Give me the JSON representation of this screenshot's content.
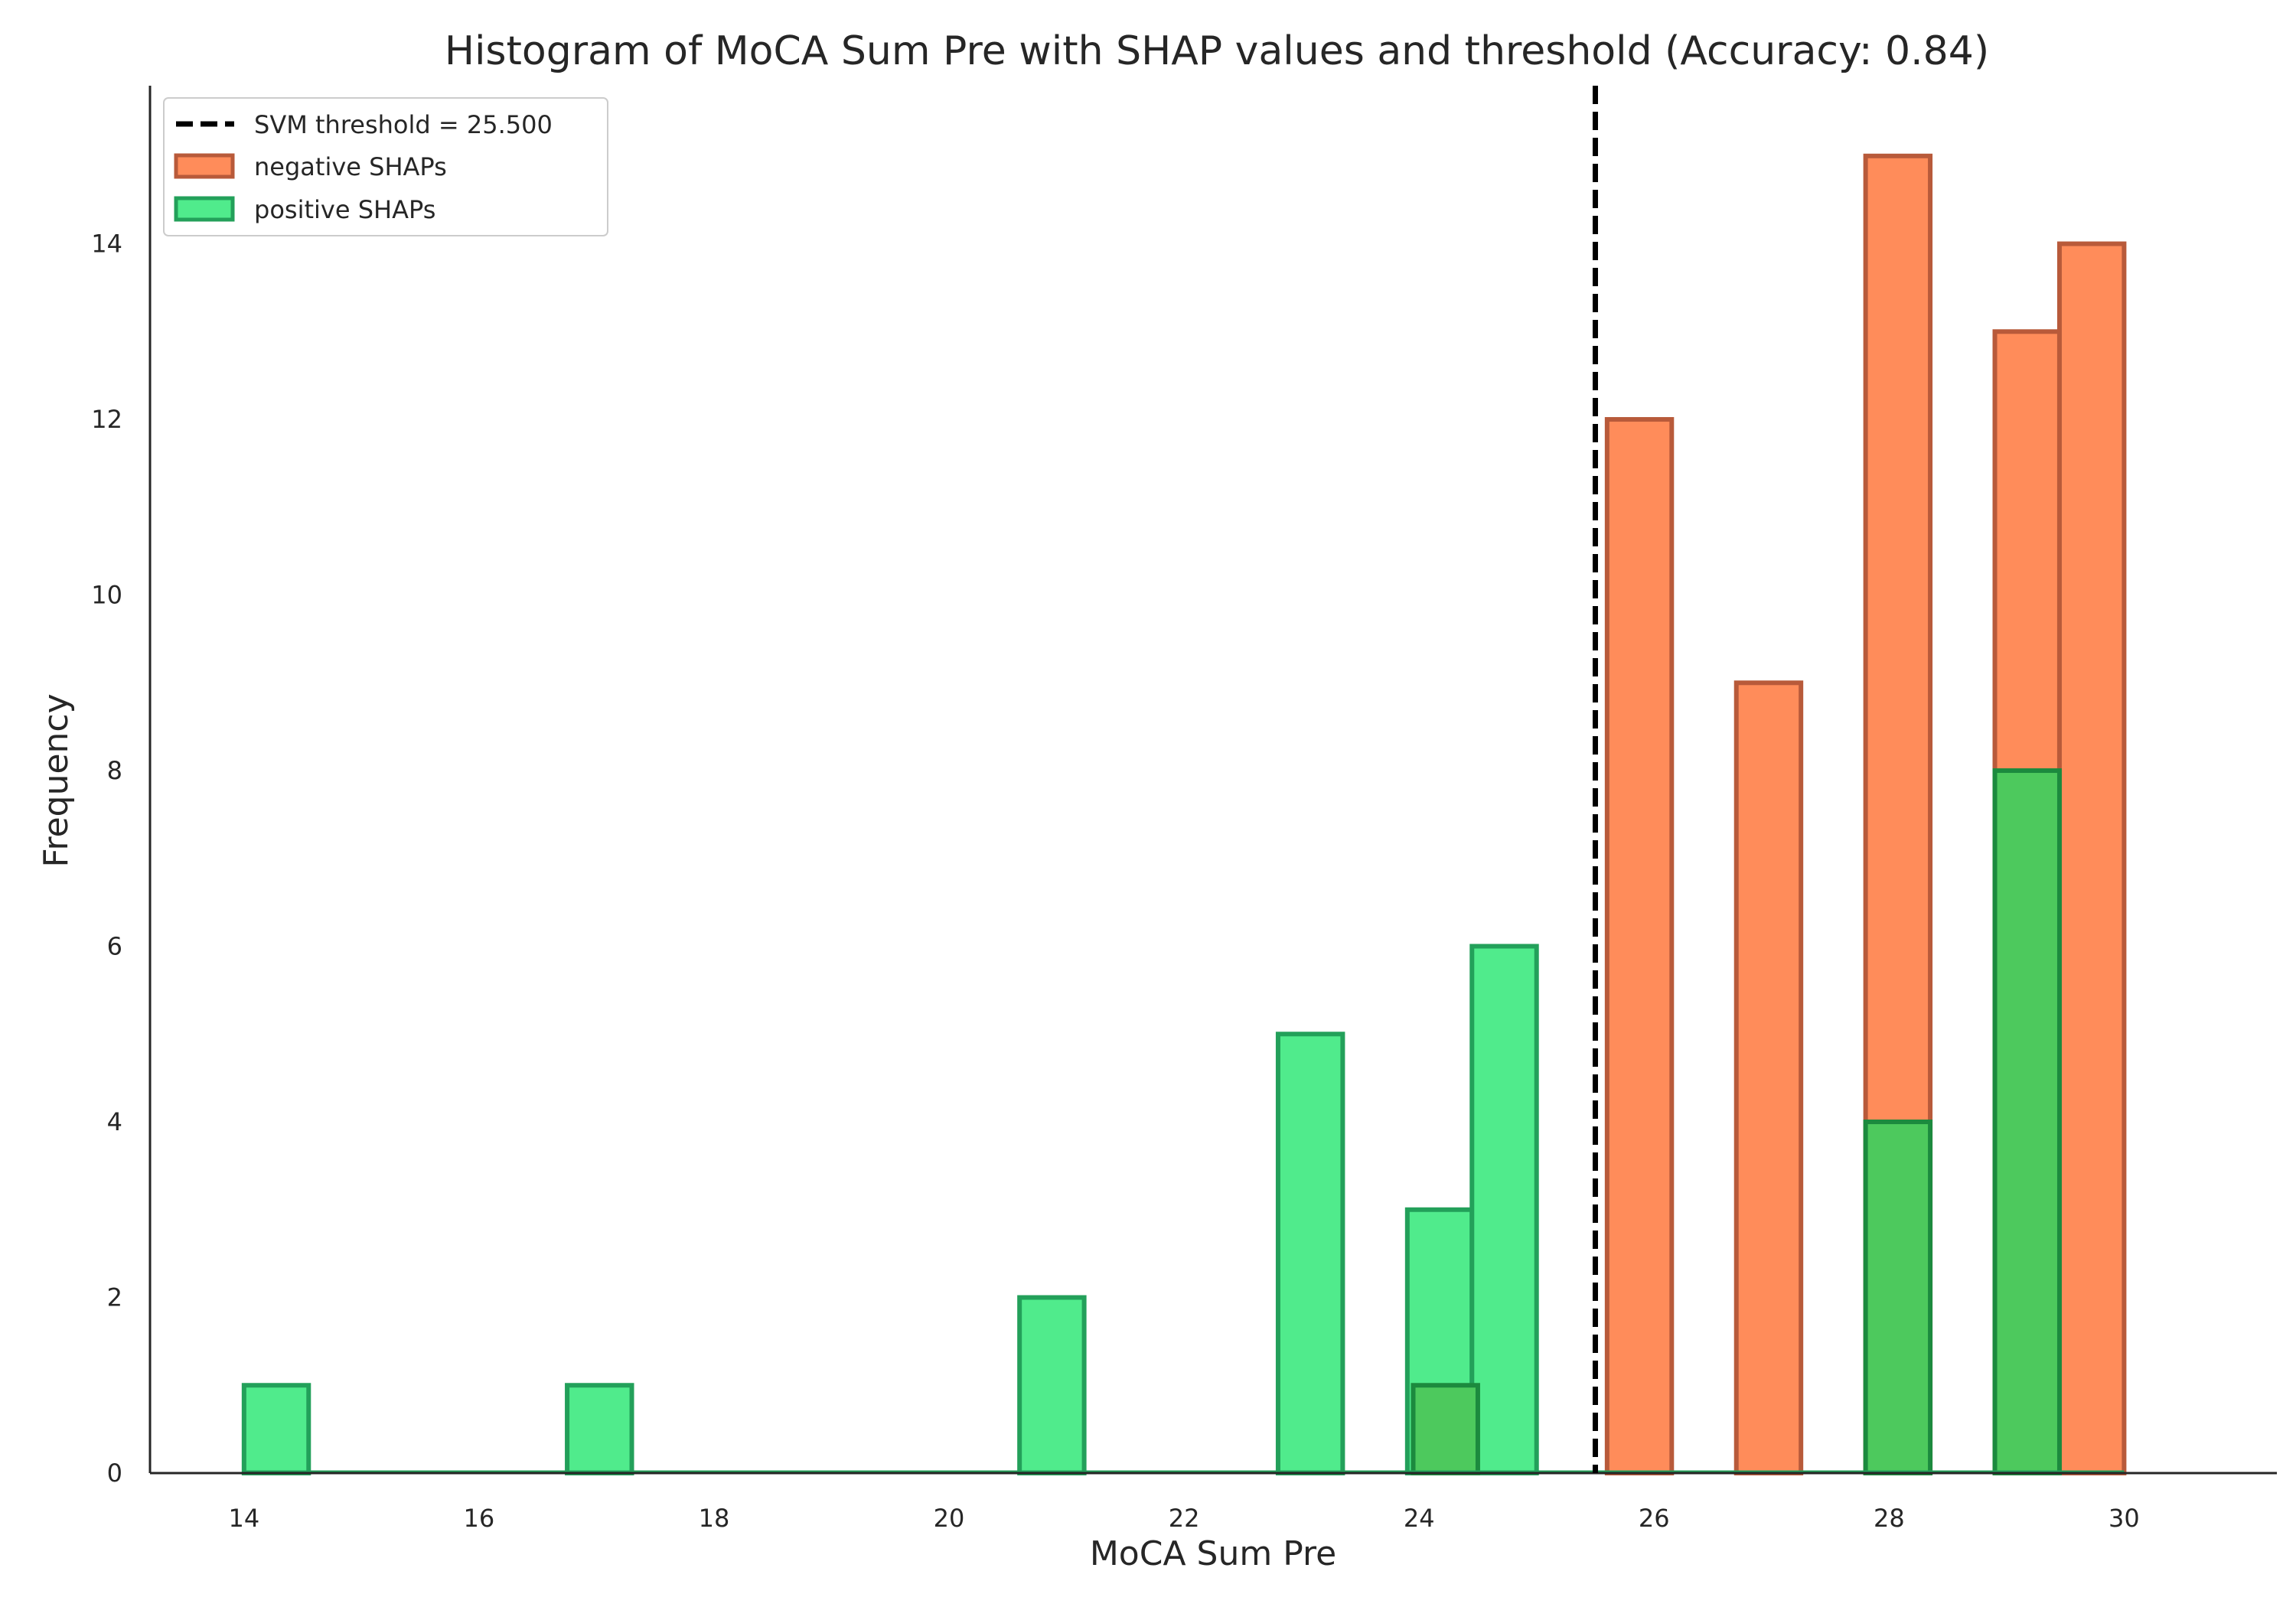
{
  "chart_data": {
    "type": "bar",
    "title": "Histogram of MoCA Sum Pre with SHAP values and threshold (Accuracy: 0.84)",
    "xlabel": "MoCA Sum Pre",
    "ylabel": "Frequency",
    "xlim": [
      13.2,
      31.3
    ],
    "ylim": [
      0,
      15.8
    ],
    "xticks": [
      14,
      16,
      18,
      20,
      22,
      24,
      26,
      28,
      30
    ],
    "yticks": [
      0,
      2,
      4,
      6,
      8,
      10,
      12,
      14
    ],
    "grid": false,
    "legend_position": "top-left",
    "threshold": {
      "label": "SVM threshold = 25.500",
      "value": 25.5,
      "color": "#000000",
      "style": "dashed"
    },
    "series": [
      {
        "name": "negative SHAPs",
        "fill": "#ff8c5a",
        "stroke": "#b85a3a",
        "bins": [
          {
            "x0": 23.95,
            "x1": 24.5,
            "value": 1
          },
          {
            "x0": 25.6,
            "x1": 26.15,
            "value": 12
          },
          {
            "x0": 26.7,
            "x1": 27.25,
            "value": 9
          },
          {
            "x0": 27.8,
            "x1": 28.35,
            "value": 15
          },
          {
            "x0": 28.9,
            "x1": 29.45,
            "value": 13
          },
          {
            "x0": 29.45,
            "x1": 30.0,
            "value": 14
          }
        ]
      },
      {
        "name": "positive SHAPs",
        "fill": "#50eb8c",
        "stroke": "#23a05a",
        "opacity": 1,
        "bins": [
          {
            "x0": 14.0,
            "x1": 14.55,
            "value": 1
          },
          {
            "x0": 16.75,
            "x1": 17.3,
            "value": 1
          },
          {
            "x0": 20.6,
            "x1": 21.15,
            "value": 2
          },
          {
            "x0": 22.8,
            "x1": 23.35,
            "value": 5
          },
          {
            "x0": 23.9,
            "x1": 24.45,
            "value": 3
          },
          {
            "x0": 24.45,
            "x1": 25.0,
            "value": 6
          }
        ]
      },
      {
        "name": "",
        "fill": "#4dc95d",
        "stroke": "#1c8a3e",
        "bins": [
          {
            "x0": 23.95,
            "x1": 24.5,
            "value": 1
          },
          {
            "x0": 27.8,
            "x1": 28.35,
            "value": 4
          },
          {
            "x0": 28.9,
            "x1": 29.45,
            "value": 8
          }
        ]
      }
    ]
  }
}
